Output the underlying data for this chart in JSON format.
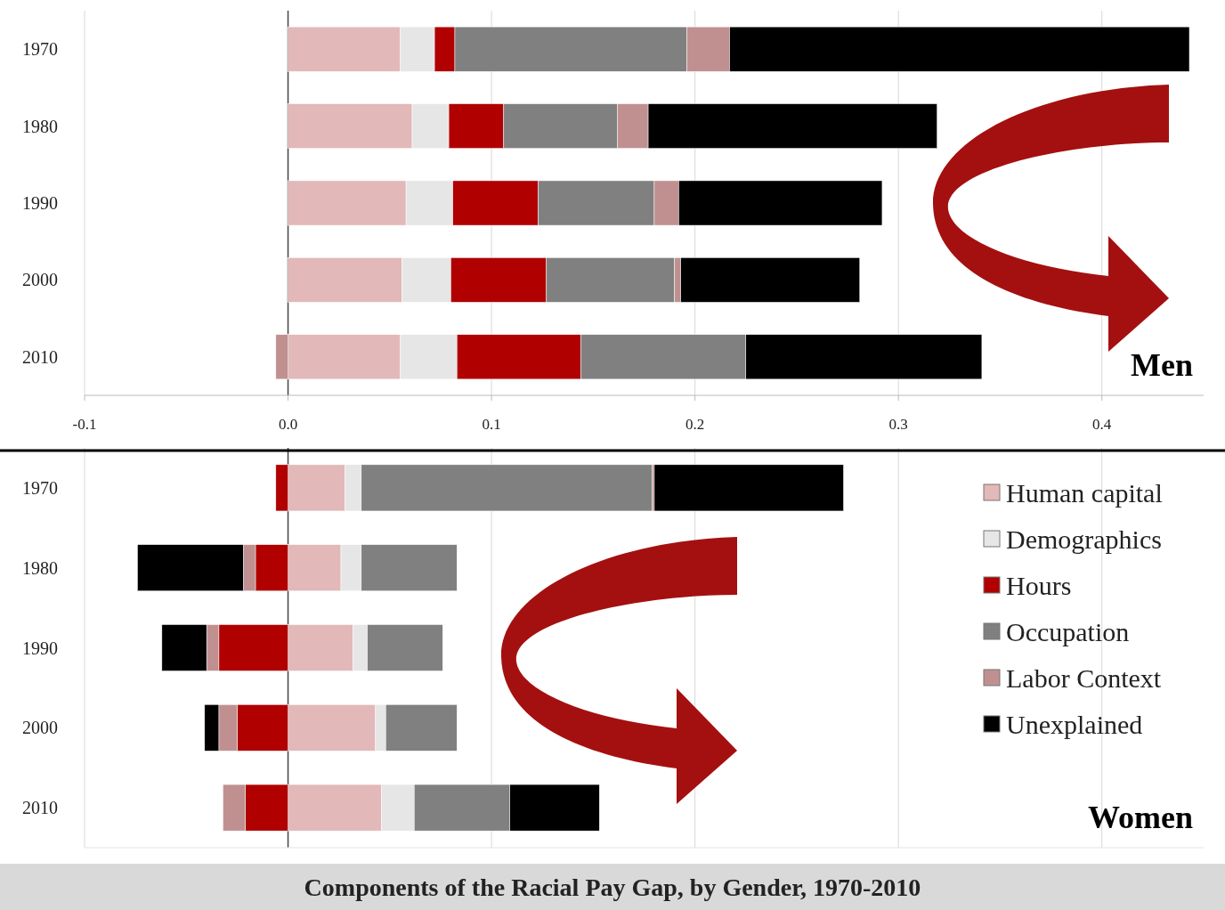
{
  "chart_data": [
    {
      "type": "bar",
      "orientation": "horizontal",
      "stacked": true,
      "categories": [
        "1970",
        "1980",
        "1990",
        "2000",
        "2010"
      ],
      "xlim": [
        -0.1,
        0.45
      ],
      "xticks": [
        -0.1,
        {
          "value": 0,
          "label": "0.0"
        },
        0.1,
        0.2,
        0.3,
        0.4
      ],
      "grid": "x",
      "legend": false,
      "annotations": [
        "Men"
      ],
      "series": [
        {
          "color": "#e2b8b8",
          "values": [
            0.055,
            0.061,
            0.058,
            0.056,
            0.055
          ]
        },
        {
          "color": "#e6e6e6",
          "values": [
            0.017,
            0.018,
            0.023,
            0.024,
            0.028
          ]
        },
        {
          "color": "#b00000",
          "values": [
            0.01,
            0.027,
            0.042,
            0.047,
            0.061
          ]
        },
        {
          "color": "#808080",
          "values": [
            0.114,
            0.056,
            0.057,
            0.063,
            0.081
          ]
        },
        {
          "color": "#c09090",
          "values": [
            0.021,
            0.015,
            0.012,
            0.003,
            -0.006
          ]
        },
        {
          "color": "#000000",
          "values": [
            0.226,
            0.142,
            0.1,
            0.088,
            0.116
          ]
        }
      ]
    },
    {
      "type": "bar",
      "orientation": "horizontal",
      "stacked": true,
      "categories": [
        "1970",
        "1980",
        "1990",
        "2000",
        "2010"
      ],
      "xlim": [
        -0.1,
        0.45
      ],
      "xticks": [
        -0.1,
        0,
        0.1,
        0.2,
        0.3,
        0.4
      ],
      "tick_labels": "y",
      "grid": "x",
      "legend": "right",
      "title": "Components of the Racial Pay Gap, by Gender, 1970-2010",
      "annotations": [
        "Women"
      ],
      "series": [
        {
          "name": "Human capital",
          "color": "#e2b8b8",
          "values": [
            0.028,
            0.026,
            0.032,
            0.043,
            0.046
          ]
        },
        {
          "name": "Demographics",
          "color": "#e6e6e6",
          "values": [
            0.008,
            0.01,
            0.007,
            0.005,
            0.016
          ]
        },
        {
          "name": "Hours",
          "color": "#b00000",
          "values": [
            -0.006,
            -0.016,
            -0.034,
            -0.025,
            -0.021
          ]
        },
        {
          "name": "Occupation",
          "color": "#808080",
          "values": [
            0.143,
            0.047,
            0.037,
            0.035,
            0.047
          ]
        },
        {
          "name": "Labor Context",
          "color": "#c09090",
          "values": [
            0.001,
            -0.006,
            -0.006,
            -0.009,
            -0.011
          ]
        },
        {
          "name": "Unexplained",
          "color": "#000000",
          "values": [
            0.093,
            -0.052,
            -0.022,
            -0.007,
            0.044
          ]
        }
      ]
    }
  ]
}
